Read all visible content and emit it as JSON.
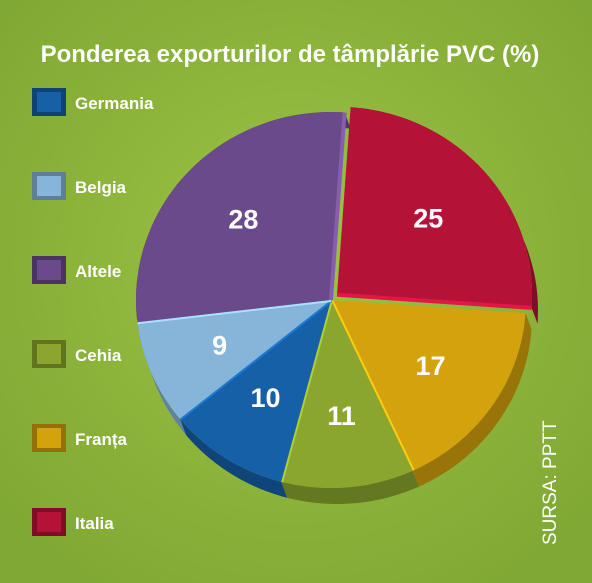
{
  "chart_data": {
    "type": "pie",
    "title": "Ponderea exporturilor de tâmplărie PVC (%)",
    "legend_position": "left",
    "slices": [
      {
        "label": "Italia",
        "value": 25,
        "color": "#b51238"
      },
      {
        "label": "Franța",
        "value": 17,
        "color": "#d4a20c"
      },
      {
        "label": "Cehia",
        "value": 11,
        "color": "#8aa62e"
      },
      {
        "label": "Germania",
        "value": 10,
        "color": "#1660a8"
      },
      {
        "label": "Belgia",
        "value": 9,
        "color": "#86b5d9"
      },
      {
        "label": "Altele",
        "value": 28,
        "color": "#6b4a8c"
      }
    ],
    "legend_order": [
      "Germania",
      "Belgia",
      "Altele",
      "Cehia",
      "Franța",
      "Italia"
    ],
    "source": "SURSA: PPTT"
  },
  "colors": {
    "background": "#8db53a",
    "text": "#ffffff"
  }
}
